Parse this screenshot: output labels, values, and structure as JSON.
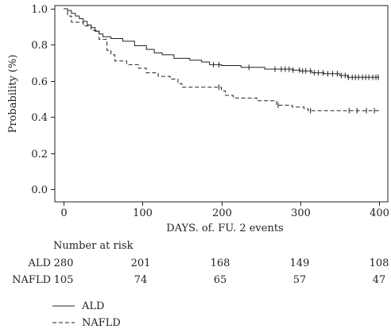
{
  "chart_data": {
    "type": "line",
    "title": "",
    "xlabel": "DAYS. of. FU. 2 events",
    "ylabel": "Probability (%)",
    "xlim": [
      0,
      400
    ],
    "ylim": [
      0,
      1.0
    ],
    "x_ticks": [
      "0",
      "100",
      "200",
      "300",
      "400"
    ],
    "y_ticks": [
      "0.0",
      "0.2",
      "0.4",
      "0.6",
      "0.8",
      "1.0"
    ],
    "grid": false,
    "series": [
      {
        "name": "ALD",
        "line_style": "solid",
        "steps": [
          [
            0,
            1.0
          ],
          [
            5,
            0.99
          ],
          [
            10,
            0.975
          ],
          [
            15,
            0.96
          ],
          [
            20,
            0.945
          ],
          [
            25,
            0.93
          ],
          [
            30,
            0.91
          ],
          [
            35,
            0.895
          ],
          [
            40,
            0.875
          ],
          [
            45,
            0.86
          ],
          [
            50,
            0.845
          ],
          [
            60,
            0.835
          ],
          [
            75,
            0.82
          ],
          [
            90,
            0.795
          ],
          [
            105,
            0.775
          ],
          [
            115,
            0.755
          ],
          [
            125,
            0.745
          ],
          [
            140,
            0.725
          ],
          [
            160,
            0.715
          ],
          [
            175,
            0.705
          ],
          [
            185,
            0.69
          ],
          [
            200,
            0.685
          ],
          [
            225,
            0.675
          ],
          [
            255,
            0.665
          ],
          [
            290,
            0.66
          ],
          [
            300,
            0.655
          ],
          [
            315,
            0.645
          ],
          [
            330,
            0.64
          ],
          [
            350,
            0.63
          ],
          [
            360,
            0.62
          ]
        ],
        "censored": [
          190,
          197,
          235,
          268,
          276,
          281,
          286,
          291,
          299,
          303,
          307,
          313,
          318,
          323,
          329,
          335,
          341,
          347,
          352,
          357,
          361,
          366,
          370,
          374,
          379,
          383,
          387,
          392,
          396,
          399
        ]
      },
      {
        "name": "NAFLD",
        "line_style": "dashed",
        "steps": [
          [
            0,
            1.0
          ],
          [
            5,
            0.96
          ],
          [
            10,
            0.925
          ],
          [
            25,
            0.905
          ],
          [
            35,
            0.88
          ],
          [
            45,
            0.83
          ],
          [
            55,
            0.77
          ],
          [
            60,
            0.745
          ],
          [
            65,
            0.71
          ],
          [
            80,
            0.69
          ],
          [
            95,
            0.67
          ],
          [
            105,
            0.645
          ],
          [
            120,
            0.625
          ],
          [
            135,
            0.61
          ],
          [
            145,
            0.585
          ],
          [
            150,
            0.565
          ],
          [
            200,
            0.545
          ],
          [
            205,
            0.52
          ],
          [
            215,
            0.505
          ],
          [
            245,
            0.49
          ],
          [
            270,
            0.465
          ],
          [
            290,
            0.455
          ],
          [
            305,
            0.445
          ],
          [
            310,
            0.435
          ]
        ],
        "censored": [
          197,
          272,
          313,
          362,
          372,
          384,
          394
        ]
      }
    ],
    "number_at_risk": {
      "label": "Number at risk",
      "rows": [
        {
          "group": "ALD",
          "values": [
            "280",
            "201",
            "168",
            "149",
            "108"
          ]
        },
        {
          "group": "NAFLD",
          "values": [
            "105",
            "74",
            "65",
            "57",
            "47"
          ]
        }
      ]
    },
    "legend": {
      "placement": "bottom-left",
      "items": [
        {
          "name": "ALD",
          "line_style": "solid"
        },
        {
          "name": "NAFLD",
          "line_style": "dashed"
        }
      ]
    }
  }
}
